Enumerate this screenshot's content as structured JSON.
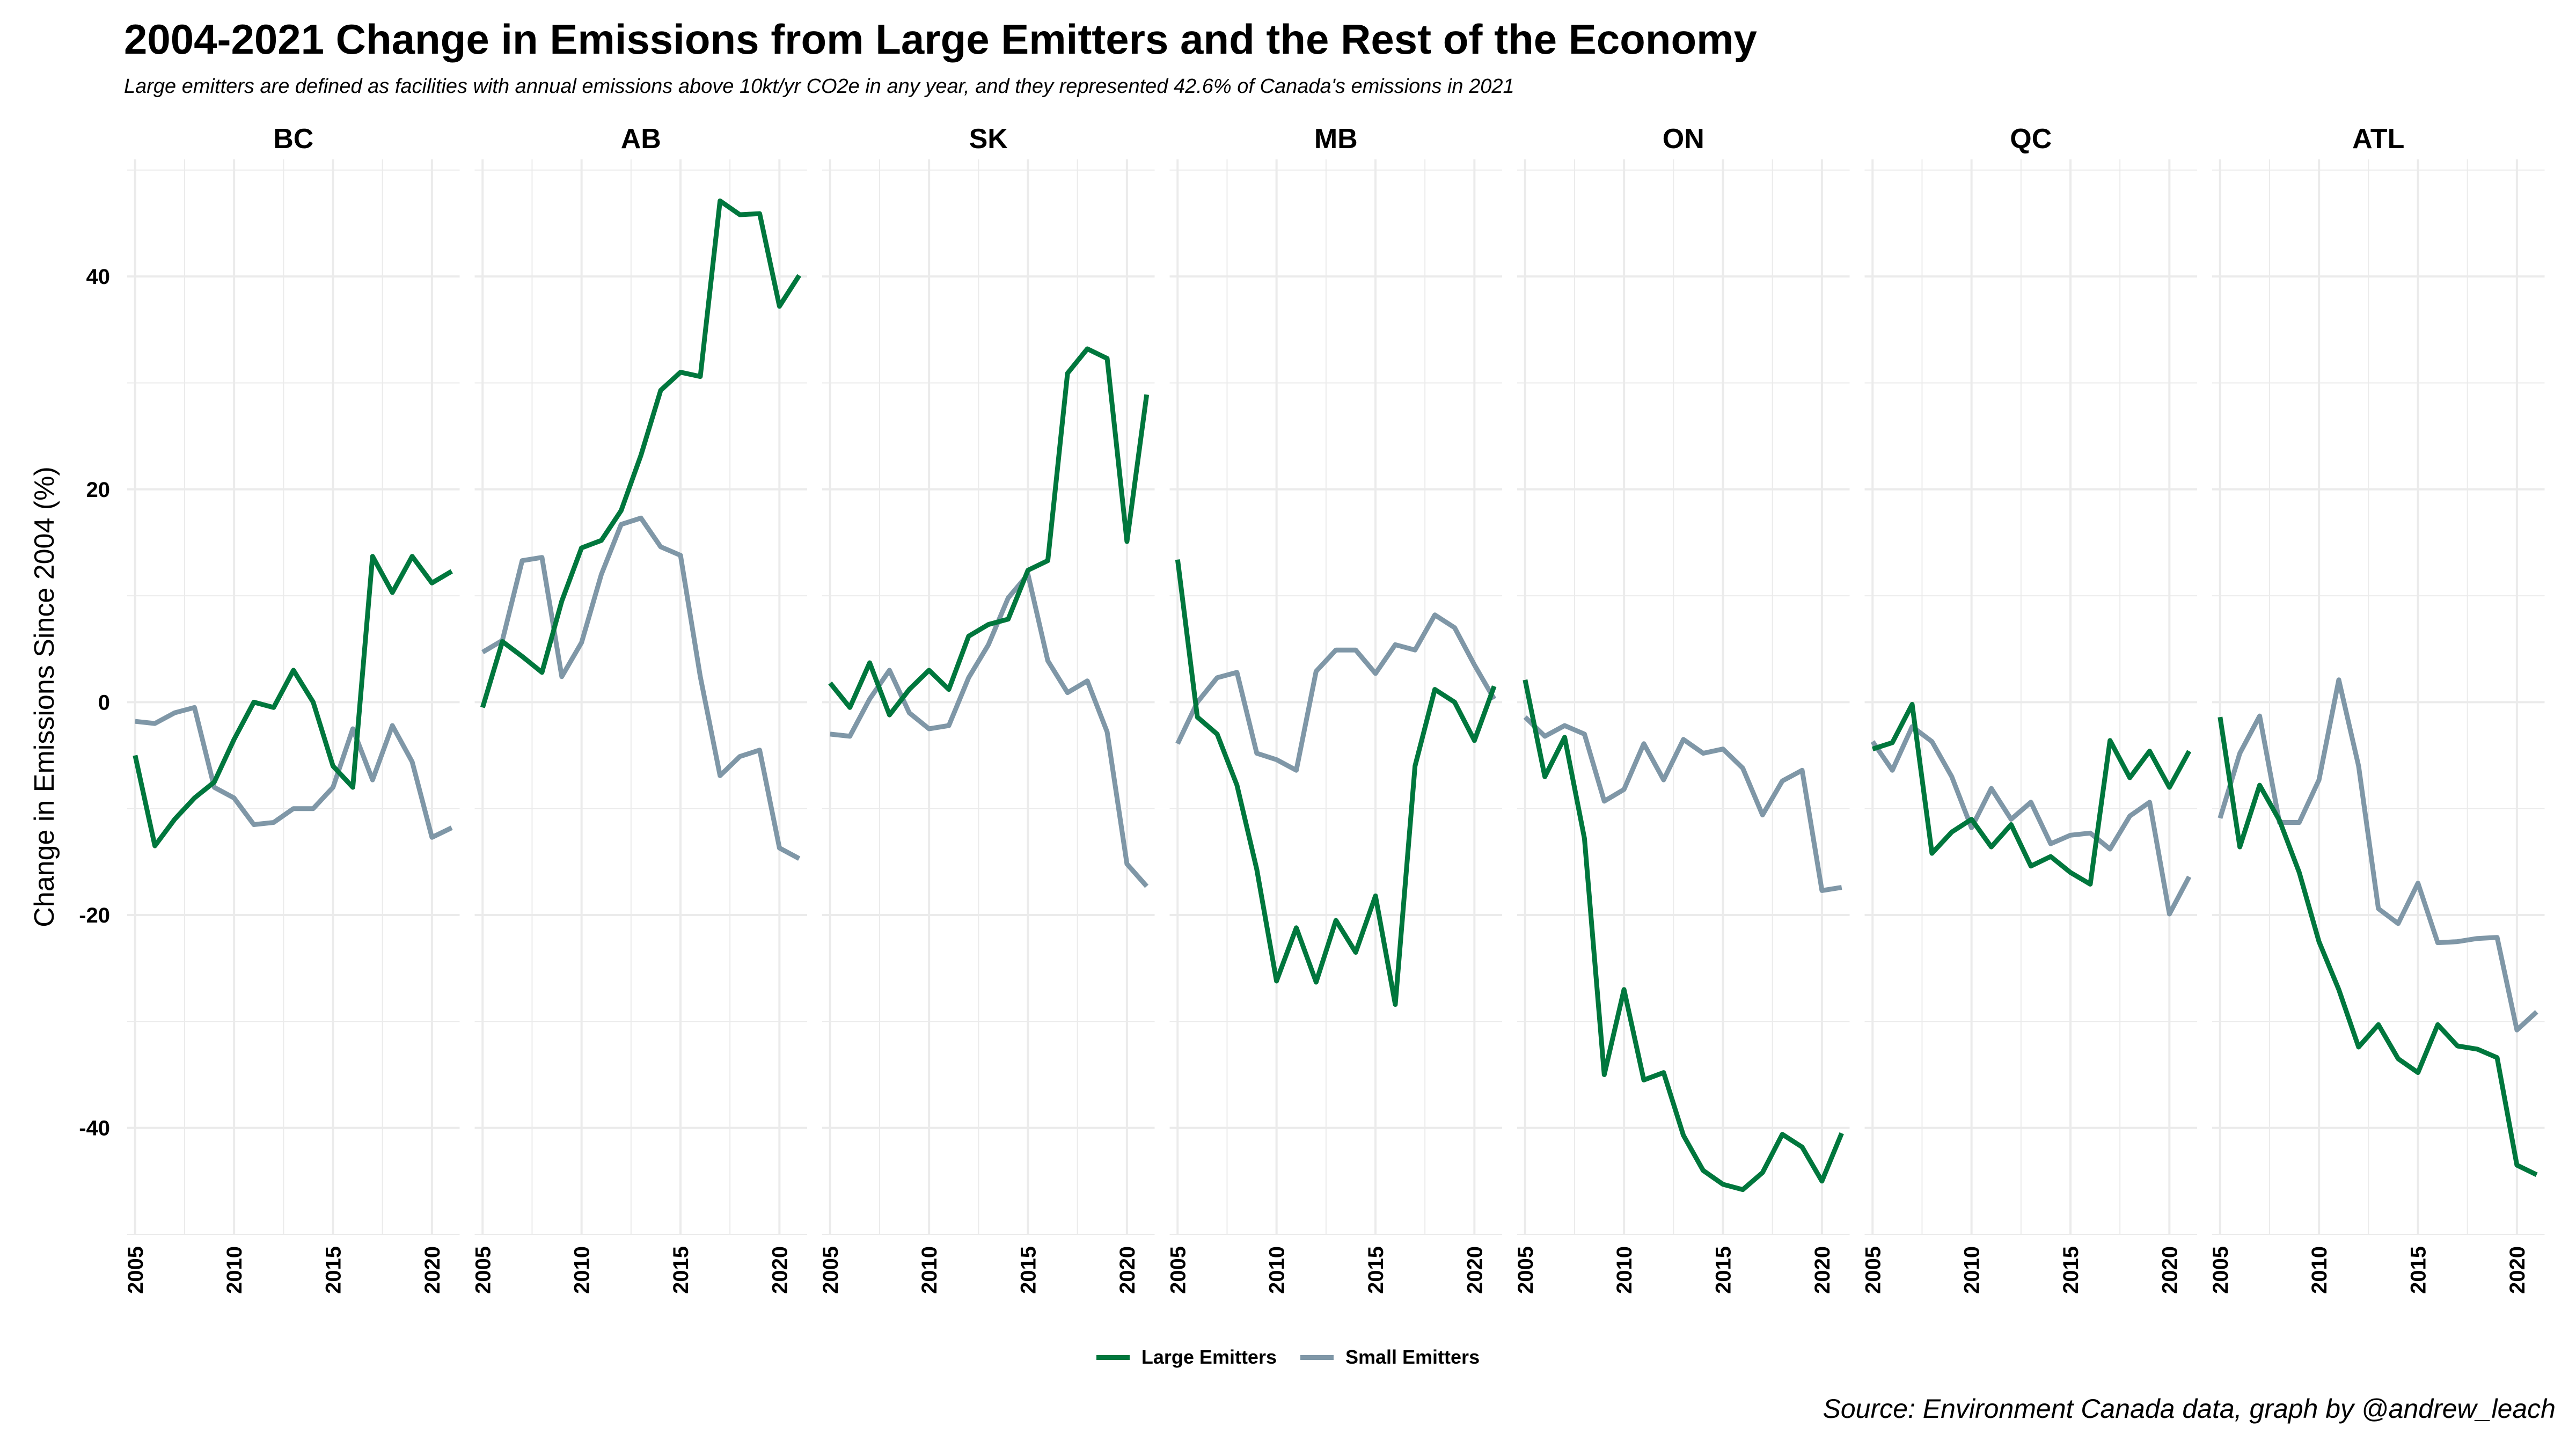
{
  "title": "2004-2021 Change in Emissions from Large Emitters and the Rest of the Economy",
  "subtitle": "Large emitters are defined as facilities with annual emissions above 10kt/yr CO2e in any year, and they represented 42.6% of Canada's emissions in 2021",
  "caption": "Source: Environment Canada data, graph by @andrew_leach",
  "colors": {
    "large": "#00773d",
    "small": "#7f97a7",
    "grid": "#ebebeb"
  },
  "chart_data": {
    "type": "line",
    "ylabel": "Change in Emissions Since 2004 (%)",
    "xlabel": "",
    "ylim": [
      -50,
      51
    ],
    "xlim": [
      2004.6,
      2021.4
    ],
    "y_ticks": [
      -40,
      -20,
      0,
      20,
      40
    ],
    "x_ticks": [
      2005,
      2010,
      2015,
      2020
    ],
    "grid": true,
    "legend_position": "bottom",
    "series_names": [
      "Large Emitters",
      "Small Emitters"
    ],
    "x": [
      2005,
      2006,
      2007,
      2008,
      2009,
      2010,
      2011,
      2012,
      2013,
      2014,
      2015,
      2016,
      2017,
      2018,
      2019,
      2020,
      2021
    ],
    "panels": [
      {
        "name": "BC",
        "large": [
          -5,
          -13.5,
          -11,
          -9,
          -7.5,
          -3.5,
          0,
          -0.5,
          3,
          0,
          -6,
          -8,
          13.7,
          10.3,
          13.7,
          11.2,
          12.3
        ],
        "small": [
          -1.8,
          -2,
          -1,
          -0.5,
          -8,
          -9,
          -11.5,
          -11.3,
          -10,
          -10,
          -8,
          -2.5,
          -7.3,
          -2.2,
          -5.6,
          -12.7,
          -11.8
        ]
      },
      {
        "name": "AB",
        "large": [
          -0.5,
          5.7,
          4.3,
          2.8,
          9.5,
          14.5,
          15.2,
          18,
          23.2,
          29.3,
          31,
          30.6,
          47.1,
          45.8,
          45.9,
          37.2,
          40.1
        ],
        "small": [
          4.7,
          5.8,
          13.3,
          13.6,
          2.4,
          5.6,
          12,
          16.7,
          17.3,
          14.6,
          13.8,
          2.4,
          -6.9,
          -5.1,
          -4.5,
          -13.7,
          -14.7
        ]
      },
      {
        "name": "SK",
        "large": [
          1.8,
          -0.5,
          3.7,
          -1.2,
          1.2,
          3,
          1.2,
          6.2,
          7.3,
          7.8,
          12.4,
          13.3,
          30.9,
          33.2,
          32.3,
          15.1,
          28.9
        ],
        "small": [
          -3,
          -3.2,
          0.3,
          3,
          -1,
          -2.5,
          -2.2,
          2.3,
          5.4,
          9.8,
          12,
          3.9,
          0.9,
          2,
          -2.8,
          -15.2,
          -17.3
        ]
      },
      {
        "name": "MB",
        "large": [
          13.4,
          -1.4,
          -3,
          -7.8,
          -15.7,
          -26.2,
          -21.2,
          -26.3,
          -20.5,
          -23.5,
          -18.2,
          -28.4,
          -6,
          1.2,
          0,
          -3.6,
          1.5
        ],
        "small": [
          -3.9,
          0,
          2.3,
          2.8,
          -4.8,
          -5.4,
          -6.4,
          2.9,
          4.9,
          4.9,
          2.7,
          5.4,
          4.9,
          8.2,
          7,
          3.5,
          0.3
        ]
      },
      {
        "name": "ON",
        "large": [
          2.1,
          -7,
          -3.3,
          -12.8,
          -35,
          -27,
          -35.5,
          -34.8,
          -40.7,
          -44,
          -45.3,
          -45.8,
          -44.2,
          -40.6,
          -41.8,
          -45,
          -40.5
        ],
        "small": [
          -1.4,
          -3.2,
          -2.2,
          -3,
          -9.3,
          -8.2,
          -3.9,
          -7.3,
          -3.5,
          -4.8,
          -4.4,
          -6.2,
          -10.6,
          -7.4,
          -6.4,
          -17.7,
          -17.4
        ]
      },
      {
        "name": "QC",
        "large": [
          -4.4,
          -3.8,
          -0.2,
          -14.2,
          -12.2,
          -11,
          -13.6,
          -11.5,
          -15.4,
          -14.5,
          -16,
          -17.1,
          -3.6,
          -7.1,
          -4.6,
          -8,
          -4.6
        ],
        "small": [
          -3.7,
          -6.4,
          -2.3,
          -3.7,
          -7,
          -11.8,
          -8.1,
          -11,
          -9.4,
          -13.3,
          -12.5,
          -12.3,
          -13.8,
          -10.7,
          -9.4,
          -19.9,
          -16.4
        ]
      },
      {
        "name": "ATL",
        "large": [
          -1.4,
          -13.6,
          -7.8,
          -11.1,
          -16,
          -22.5,
          -27,
          -32.4,
          -30.3,
          -33.5,
          -34.8,
          -30.3,
          -32.3,
          -32.6,
          -33.4,
          -43.5,
          -44.4
        ],
        "small": [
          -10.9,
          -4.8,
          -1.3,
          -11.3,
          -11.3,
          -7.3,
          2.1,
          -6,
          -19.4,
          -20.8,
          -17,
          -22.6,
          -22.5,
          -22.2,
          -22.1,
          -30.8,
          -29.1
        ]
      }
    ]
  }
}
